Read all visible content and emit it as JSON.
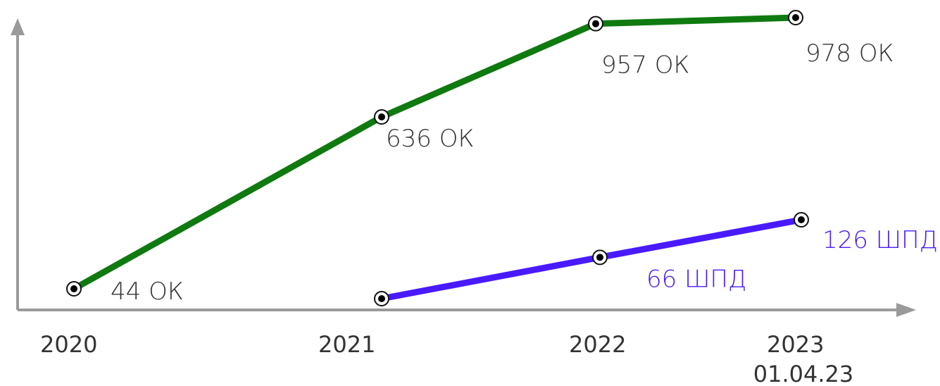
{
  "chart_data": {
    "type": "line",
    "x_ticks": [
      {
        "label": "2020",
        "sub": ""
      },
      {
        "label": "2021",
        "sub": ""
      },
      {
        "label": "2022",
        "sub": ""
      },
      {
        "label": "2023",
        "sub": "01.04.23"
      }
    ],
    "series": [
      {
        "color": "#0f7a0f",
        "points": [
          {
            "x": "2020",
            "value": 44,
            "label": "44 ОК"
          },
          {
            "x": "2021",
            "value": 636,
            "label": "636 ОК"
          },
          {
            "x": "2022",
            "value": 957,
            "label": "957 ОК"
          },
          {
            "x": "2023",
            "value": 978,
            "label": "978 ОК"
          }
        ]
      },
      {
        "color": "#4a1aff",
        "points": [
          {
            "x": "2021",
            "value": 0,
            "label": ""
          },
          {
            "x": "2022",
            "value": 66,
            "label": "66 ШПД"
          },
          {
            "x": "2023",
            "value": 126,
            "label": "126 ШПД"
          }
        ]
      }
    ],
    "axis_color": "#9a9a9a",
    "grid": false,
    "legend": "none"
  }
}
